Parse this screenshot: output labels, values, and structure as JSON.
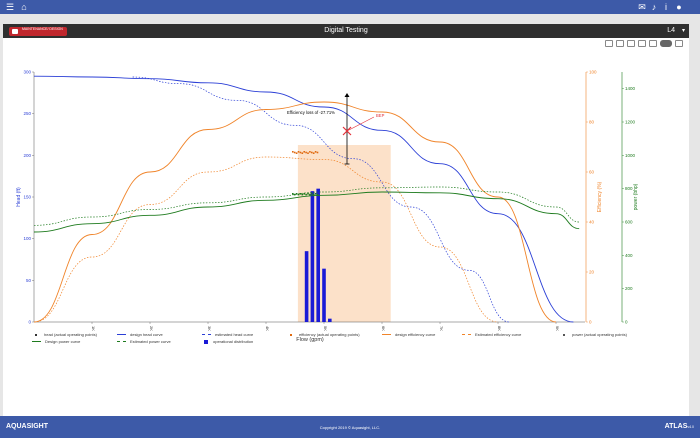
{
  "topbar": {
    "menu_icon": "menu-icon",
    "home_icon": "home-icon",
    "icons": [
      "chat-icon",
      "bell-icon",
      "info-icon",
      "user-icon"
    ]
  },
  "header": {
    "logo_text": "MAINTENANCE/ DESIGN",
    "title": "Digital Testing",
    "unit_select": "L4"
  },
  "chart_data": {
    "type": "line",
    "xlabel": "Flow (gpm)",
    "ylabel_left": "Head (ft)",
    "ylabel_eff": "Efficiency (%)",
    "ylabel_power": "power (bhp)",
    "x_ticks": [
      "1K",
      "2K",
      "3K",
      "4K",
      "5K",
      "6K",
      "7K",
      "8K",
      "9K"
    ],
    "head_ticks": [
      "0",
      "50",
      "100",
      "150",
      "200",
      "250",
      "300"
    ],
    "head_range": [
      0,
      300
    ],
    "eff_ticks": [
      "0",
      "20",
      "40",
      "60",
      "80",
      "100"
    ],
    "eff_range": [
      0,
      100
    ],
    "power_ticks": [
      "0",
      "200",
      "400",
      "600",
      "800",
      "1000",
      "1200",
      "1400"
    ],
    "power_range": [
      0,
      1500
    ],
    "x_range": [
      0,
      9500
    ],
    "series": [
      {
        "name": "design head curve",
        "color": "#2b3fd6",
        "axis": "head",
        "dash": "",
        "x": [
          0,
          1000,
          2000,
          3000,
          4000,
          5000,
          6000,
          7000,
          8000,
          9300
        ],
        "y": [
          295,
          294,
          292,
          287,
          276,
          258,
          230,
          190,
          130,
          0
        ]
      },
      {
        "name": "estimated head curve",
        "color": "#2b3fd6",
        "axis": "head",
        "dash": "1.5,1.5",
        "x": [
          1700,
          2500,
          3500,
          4500,
          5500,
          6500,
          7500,
          8200
        ],
        "y": [
          294,
          286,
          266,
          236,
          196,
          138,
          62,
          0
        ]
      },
      {
        "name": "design efficiency curve",
        "color": "#f0842a",
        "axis": "eff",
        "dash": "",
        "x": [
          0,
          1000,
          2000,
          3000,
          4000,
          5000,
          6000,
          7000,
          8000,
          9000
        ],
        "y": [
          0,
          35,
          60,
          77,
          85,
          88,
          84,
          72,
          50,
          0
        ]
      },
      {
        "name": "Estimated efficiency curve",
        "color": "#f0842a",
        "axis": "eff",
        "dash": "1.5,1.5",
        "x": [
          0,
          1000,
          2000,
          3000,
          4000,
          5000,
          6000,
          7000,
          8000
        ],
        "y": [
          0,
          26,
          47,
          60,
          66,
          65,
          56,
          30,
          0
        ]
      },
      {
        "name": "Design power curve",
        "color": "#1e7b1e",
        "axis": "power",
        "dash": "",
        "x": [
          0,
          1000,
          2000,
          3000,
          4000,
          5000,
          6000,
          7000,
          8000,
          9000,
          9400
        ],
        "y": [
          540,
          590,
          640,
          690,
          730,
          760,
          780,
          775,
          740,
          650,
          560
        ]
      },
      {
        "name": "Estimated power curve",
        "color": "#1e7b1e",
        "axis": "power",
        "dash": "1.5,1.5",
        "x": [
          0,
          1000,
          2000,
          3000,
          4000,
          5000,
          6000,
          7000,
          8000,
          9000,
          9400
        ],
        "y": [
          580,
          630,
          675,
          715,
          750,
          780,
          805,
          810,
          780,
          690,
          600
        ]
      }
    ],
    "operational_distribution": {
      "name": "operational distribution",
      "color": "#1a1ad6",
      "x": [
        4700,
        4800,
        4900,
        5000,
        5100
      ],
      "y": [
        85,
        157,
        160,
        64,
        4
      ]
    },
    "operating_region": {
      "x_from": 4550,
      "x_to": 6150
    },
    "annotations": {
      "efficiency_loss": "Efficiency loss of -27.71%",
      "bep": "BEP"
    },
    "legend_columns": [
      "head (actual operating points)",
      "design head curve",
      "estimated head curve",
      "efficiency (actual operating points)",
      "design efficiency curve",
      "Estimated efficiency curve",
      "power (actual operating points)",
      "Design power curve",
      "Estimated power curve",
      "operational distribution"
    ]
  },
  "footer": {
    "brand": "AQUASIGHT",
    "copyright": "Copyright 2019 © Aquasight, LLC.",
    "product": "ATLAS",
    "version": "v4.0"
  }
}
